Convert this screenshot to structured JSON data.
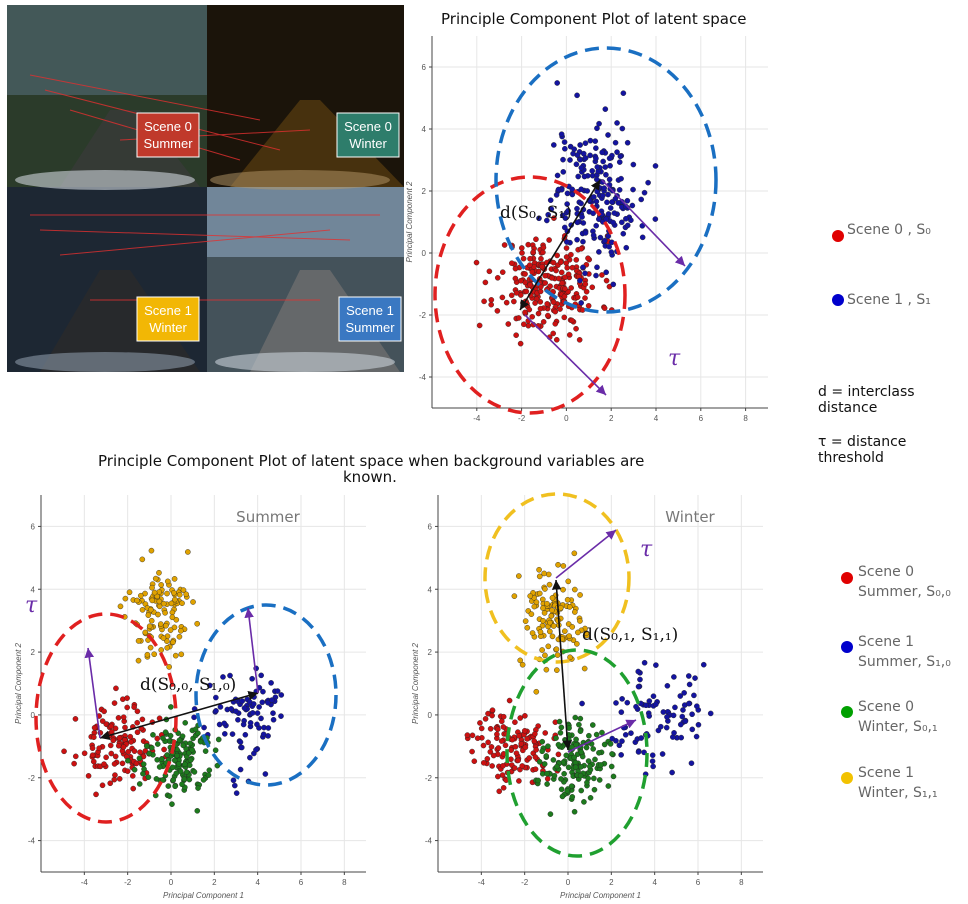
{
  "figure": {
    "top_title": "Principle Component  Plot of latent space",
    "bottom_title_line1": "Principle Component  Plot of latent space when background variables are",
    "bottom_title_line2": "known.",
    "photo_labels": [
      {
        "line1": "Scene 0",
        "line2": "Summer",
        "color": "#c0392b"
      },
      {
        "line1": "Scene 0",
        "line2": "Winter",
        "color": "#2e7d6b"
      },
      {
        "line1": "Scene 1",
        "line2": "Winter",
        "color": "#f2b705"
      },
      {
        "line1": "Scene 1",
        "line2": "Summer",
        "color": "#3a78c2"
      }
    ],
    "legend_top": [
      {
        "label": "Scene 0 , S₀",
        "color": "#e00000"
      },
      {
        "label": "Scene 1 , S₁",
        "color": "#0000cc"
      }
    ],
    "notes": {
      "d_line1": "d = interclass",
      "d_line2": "distance",
      "tau_line1": "τ = distance",
      "tau_line2": "threshold"
    },
    "legend_bottom": [
      {
        "line1": "Scene 0",
        "line2": "Summer, S₀,₀",
        "color": "#e00000"
      },
      {
        "line1": "Scene 1",
        "line2": "Summer, S₁,₀",
        "color": "#0000cc"
      },
      {
        "line1": "Scene 0",
        "line2": "Winter, S₀,₁",
        "color": "#00a000"
      },
      {
        "line1": "Scene 1",
        "line2": "Winter, S₁,₁",
        "color": "#f2c200"
      }
    ]
  },
  "chart_data": [
    {
      "type": "scatter",
      "title": "Principle Component  Plot of latent space",
      "xlabel": "",
      "ylabel": "Principal Component 2",
      "xlim": [
        -6,
        9
      ],
      "ylim": [
        -5,
        7
      ],
      "xticks": [
        -4,
        -2,
        0,
        2,
        4,
        6,
        8
      ],
      "yticks": [
        -4,
        -2,
        0,
        2,
        4,
        6
      ],
      "grid": true,
      "annotations": [
        "d(S₀, S₁)",
        "τ"
      ],
      "series": [
        {
          "name": "Scene 0 , S₀",
          "color": "#cc1111",
          "center": [
            -0.8,
            -1.0
          ],
          "spread": [
            1.9,
            1.3
          ],
          "approx_count": 260
        },
        {
          "name": "Scene 1 , S₁",
          "color": "#1414a0",
          "center": [
            1.3,
            2.0
          ],
          "spread": [
            1.6,
            2.0
          ],
          "approx_count": 220
        }
      ]
    },
    {
      "type": "scatter",
      "title": "Summer",
      "xlabel": "Principal Component 1",
      "ylabel": "Principal Component 2",
      "xlim": [
        -6,
        9
      ],
      "ylim": [
        -5,
        7
      ],
      "xticks": [
        -4,
        -2,
        0,
        2,
        4,
        6,
        8
      ],
      "yticks": [
        -4,
        -2,
        0,
        2,
        4,
        6
      ],
      "grid": true,
      "annotations": [
        "d(S₀,₀, S₁,₀)",
        "τ"
      ],
      "series": [
        {
          "name": "Scene 0 Summer, S₀,₀",
          "color": "#cc1111",
          "center": [
            -2.5,
            -1.0
          ],
          "spread": [
            1.5,
            1.0
          ],
          "approx_count": 130
        },
        {
          "name": "Scene 1 Summer, S₁,₀",
          "color": "#1414a0",
          "center": [
            3.5,
            0.0
          ],
          "spread": [
            1.6,
            1.4
          ],
          "approx_count": 90
        },
        {
          "name": "Scene 0 Winter, S₀,₁",
          "color": "#1d7a1d",
          "center": [
            0.3,
            -1.4
          ],
          "spread": [
            1.3,
            1.0
          ],
          "approx_count": 150
        },
        {
          "name": "Scene 1 Winter, S₁,₁",
          "color": "#e0a200",
          "center": [
            -0.6,
            3.2
          ],
          "spread": [
            1.3,
            1.4
          ],
          "approx_count": 120
        }
      ]
    },
    {
      "type": "scatter",
      "title": "Winter",
      "xlabel": "Principal Component 1",
      "ylabel": "Principal Component 2",
      "xlim": [
        -6,
        9
      ],
      "ylim": [
        -5,
        7
      ],
      "xticks": [
        -4,
        -2,
        0,
        2,
        4,
        6,
        8
      ],
      "yticks": [
        -4,
        -2,
        0,
        2,
        4,
        6
      ],
      "grid": true,
      "annotations": [
        "d(S₀,₁, S₁,₁)",
        "τ"
      ],
      "series": [
        {
          "name": "Scene 0 Summer, S₀,₀",
          "color": "#cc1111",
          "center": [
            -2.5,
            -1.0
          ],
          "spread": [
            1.5,
            1.0
          ],
          "approx_count": 130
        },
        {
          "name": "Scene 1 Summer, S₁,₀",
          "color": "#1414a0",
          "center": [
            4.0,
            0.0
          ],
          "spread": [
            1.8,
            1.5
          ],
          "approx_count": 90
        },
        {
          "name": "Scene 0 Winter, S₀,₁",
          "color": "#1d7a1d",
          "center": [
            0.3,
            -1.4
          ],
          "spread": [
            1.3,
            1.0
          ],
          "approx_count": 150
        },
        {
          "name": "Scene 1 Winter, S₁,₁",
          "color": "#e0a200",
          "center": [
            -0.6,
            3.2
          ],
          "spread": [
            1.3,
            1.4
          ],
          "approx_count": 120
        }
      ]
    }
  ]
}
